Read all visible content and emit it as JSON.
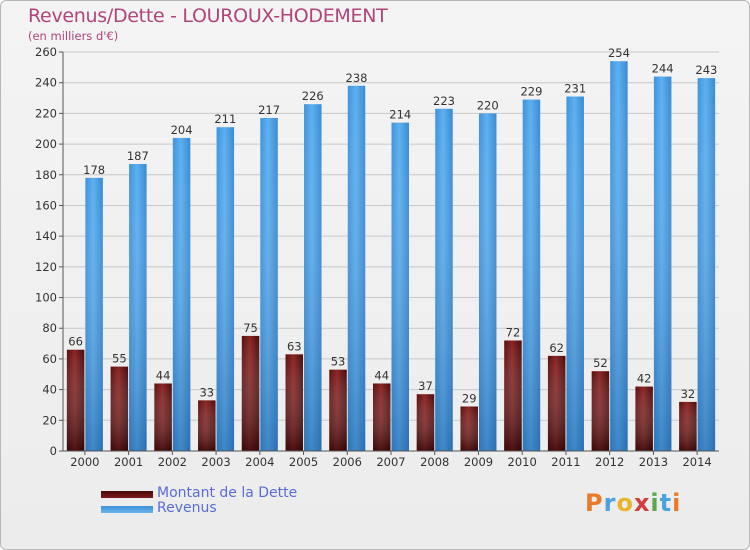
{
  "header": {
    "title": "Revenus/Dette - LOUROUX-HODEMENT",
    "subtitle": "(en milliers d'€)"
  },
  "legend": {
    "debt_label": "Montant de la Dette",
    "revenue_label": "Revenus"
  },
  "logo": {
    "text": "Proxiti",
    "letters": [
      "P",
      "r",
      "o",
      "x",
      "i",
      "t",
      "i"
    ],
    "colors": [
      "#e87a2a",
      "#4aa3df",
      "#e8b42a",
      "#d63c3c",
      "#5aa84a",
      "#4aa3df",
      "#e87a2a"
    ]
  },
  "colors": {
    "debt": "#6e1515",
    "revenue": "#4aa3e8",
    "title": "#b0457a",
    "legend_text": "#5a6bd8"
  },
  "chart_data": {
    "type": "bar",
    "categories": [
      "2000",
      "2001",
      "2002",
      "2003",
      "2004",
      "2005",
      "2006",
      "2007",
      "2008",
      "2009",
      "2010",
      "2011",
      "2012",
      "2013",
      "2014"
    ],
    "series": [
      {
        "name": "Montant de la Dette",
        "values": [
          66,
          55,
          44,
          33,
          75,
          63,
          53,
          44,
          37,
          29,
          72,
          62,
          52,
          42,
          32
        ]
      },
      {
        "name": "Revenus",
        "values": [
          178,
          187,
          204,
          211,
          217,
          226,
          238,
          214,
          223,
          220,
          229,
          231,
          254,
          244,
          243
        ]
      }
    ],
    "title": "Revenus/Dette - LOUROUX-HODEMENT",
    "subtitle": "(en milliers d'€)",
    "ylim": [
      0,
      260
    ],
    "yticks": [
      0,
      20,
      40,
      60,
      80,
      100,
      120,
      140,
      160,
      180,
      200,
      220,
      240,
      260
    ],
    "grid": true,
    "legend_position": "bottom-left"
  }
}
